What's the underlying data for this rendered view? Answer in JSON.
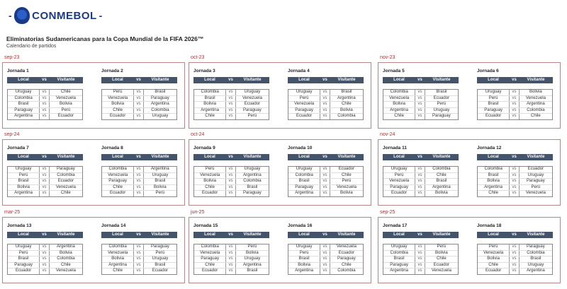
{
  "logo_text": "CONMEBOL",
  "title": "Eliminatorias Sudamericanas para la Copa Mundial de la FIFA 2026™",
  "subtitle": "Calendario de partidos",
  "header": {
    "local": "Local",
    "vs": "vs",
    "visitante": "Visitante"
  },
  "vs_label": "vs",
  "colors": {
    "header_bg": "#44546a",
    "border": "#b98585",
    "period": "#b03030"
  },
  "periods": [
    {
      "label": "sep-23",
      "jornadas": [
        {
          "title": "Jornada 1",
          "matches": [
            [
              "Uruguay",
              "Chile"
            ],
            [
              "Colombia",
              "Venezuela"
            ],
            [
              "Brasil",
              "Bolivia"
            ],
            [
              "Paraguay",
              "Perú"
            ],
            [
              "Argentina",
              "Ecuador"
            ]
          ]
        },
        {
          "title": "Jornada 2",
          "matches": [
            [
              "Perú",
              "Brasil"
            ],
            [
              "Venezuela",
              "Paraguay"
            ],
            [
              "Bolivia",
              "Argentina"
            ],
            [
              "Chile",
              "Colombia"
            ],
            [
              "Ecuador",
              "Uruguay"
            ]
          ]
        }
      ]
    },
    {
      "label": "oct-23",
      "jornadas": [
        {
          "title": "Jornada 3",
          "matches": [
            [
              "Colombia",
              "Uruguay"
            ],
            [
              "Brasil",
              "Venezuela"
            ],
            [
              "Bolivia",
              "Ecuador"
            ],
            [
              "Argentina",
              "Paraguay"
            ],
            [
              "Chile",
              "Perú"
            ]
          ]
        },
        {
          "title": "Jornada 4",
          "matches": [
            [
              "Uruguay",
              "Brasil"
            ],
            [
              "Perú",
              "Argentina"
            ],
            [
              "Venezuela",
              "Chile"
            ],
            [
              "Paraguay",
              "Bolivia"
            ],
            [
              "Ecuador",
              "Colombia"
            ]
          ]
        }
      ]
    },
    {
      "label": "nov-23",
      "jornadas": [
        {
          "title": "Jornada 5",
          "matches": [
            [
              "Colombia",
              "Brasil"
            ],
            [
              "Venezuela",
              "Ecuador"
            ],
            [
              "Bolivia",
              "Perú"
            ],
            [
              "Argentina",
              "Uruguay"
            ],
            [
              "Chile",
              "Paraguay"
            ]
          ]
        },
        {
          "title": "Jornada 6",
          "matches": [
            [
              "Uruguay",
              "Bolivia"
            ],
            [
              "Perú",
              "Venezuela"
            ],
            [
              "Brasil",
              "Argentina"
            ],
            [
              "Paraguay",
              "Colombia"
            ],
            [
              "Ecuador",
              "Chile"
            ]
          ]
        }
      ]
    },
    {
      "label": "sep-24",
      "jornadas": [
        {
          "title": "Jornada 7",
          "matches": [
            [
              "Uruguay",
              "Paraguay"
            ],
            [
              "Perú",
              "Colombia"
            ],
            [
              "Brasil",
              "Ecuador"
            ],
            [
              "Bolivia",
              "Venezuela"
            ],
            [
              "Argentina",
              "Chile"
            ]
          ]
        },
        {
          "title": "Jornada 8",
          "matches": [
            [
              "Colombia",
              "Argentina"
            ],
            [
              "Venezuela",
              "Uruguay"
            ],
            [
              "Paraguay",
              "Brasil"
            ],
            [
              "Chile",
              "Bolivia"
            ],
            [
              "Ecuador",
              "Perú"
            ]
          ]
        }
      ]
    },
    {
      "label": "oct-24",
      "jornadas": [
        {
          "title": "Jornada 9",
          "matches": [
            [
              "Perú",
              "Uruguay"
            ],
            [
              "Venezuela",
              "Argentina"
            ],
            [
              "Bolivia",
              "Colombia"
            ],
            [
              "Chile",
              "Brasil"
            ],
            [
              "Ecuador",
              "Paraguay"
            ]
          ]
        },
        {
          "title": "Jornada 10",
          "matches": [
            [
              "Uruguay",
              "Ecuador"
            ],
            [
              "Colombia",
              "Chile"
            ],
            [
              "Brasil",
              "Perú"
            ],
            [
              "Paraguay",
              "Venezuela"
            ],
            [
              "Argentina",
              "Bolivia"
            ]
          ]
        }
      ]
    },
    {
      "label": "nov-24",
      "jornadas": [
        {
          "title": "Jornada 11",
          "matches": [
            [
              "Uruguay",
              "Colombia"
            ],
            [
              "Perú",
              "Chile"
            ],
            [
              "Venezuela",
              "Brasil"
            ],
            [
              "Paraguay",
              "Argentina"
            ],
            [
              "Ecuador",
              "Bolivia"
            ]
          ]
        },
        {
          "title": "Jornada 12",
          "matches": [
            [
              "Colombia",
              "Ecuador"
            ],
            [
              "Brasil",
              "Uruguay"
            ],
            [
              "Bolivia",
              "Paraguay"
            ],
            [
              "Argentina",
              "Perú"
            ],
            [
              "Chile",
              "Venezuela"
            ]
          ]
        }
      ]
    },
    {
      "label": "mar-25",
      "jornadas": [
        {
          "title": "Jornada 13",
          "matches": [
            [
              "Uruguay",
              "Argentina"
            ],
            [
              "Perú",
              "Bolivia"
            ],
            [
              "Brasil",
              "Colombia"
            ],
            [
              "Paraguay",
              "Chile"
            ],
            [
              "Ecuador",
              "Venezuela"
            ]
          ]
        },
        {
          "title": "Jornada 14",
          "matches": [
            [
              "Colombia",
              "Paraguay"
            ],
            [
              "Venezuela",
              "Perú"
            ],
            [
              "Bolivia",
              "Uruguay"
            ],
            [
              "Argentina",
              "Brasil"
            ],
            [
              "Chile",
              "Ecuador"
            ]
          ]
        }
      ]
    },
    {
      "label": "jun-25",
      "jornadas": [
        {
          "title": "Jornada 15",
          "matches": [
            [
              "Colombia",
              "Perú"
            ],
            [
              "Venezuela",
              "Bolivia"
            ],
            [
              "Paraguay",
              "Uruguay"
            ],
            [
              "Chile",
              "Argentina"
            ],
            [
              "Ecuador",
              "Brasil"
            ]
          ]
        },
        {
          "title": "Jornada 16",
          "matches": [
            [
              "Uruguay",
              "Venezuela"
            ],
            [
              "Perú",
              "Ecuador"
            ],
            [
              "Brasil",
              "Paraguay"
            ],
            [
              "Bolivia",
              "Chile"
            ],
            [
              "Argentina",
              "Colombia"
            ]
          ]
        }
      ]
    },
    {
      "label": "sep-25",
      "jornadas": [
        {
          "title": "Jornada 17",
          "matches": [
            [
              "Uruguay",
              "Perú"
            ],
            [
              "Colombia",
              "Bolivia"
            ],
            [
              "Brasil",
              "Chile"
            ],
            [
              "Paraguay",
              "Ecuador"
            ],
            [
              "Argentina",
              "Venezuela"
            ]
          ]
        },
        {
          "title": "Jornada 18",
          "matches": [
            [
              "Perú",
              "Paraguay"
            ],
            [
              "Venezuela",
              "Colombia"
            ],
            [
              "Bolivia",
              "Brasil"
            ],
            [
              "Chile",
              "Uruguay"
            ],
            [
              "Ecuador",
              "Argentina"
            ]
          ]
        }
      ]
    }
  ]
}
